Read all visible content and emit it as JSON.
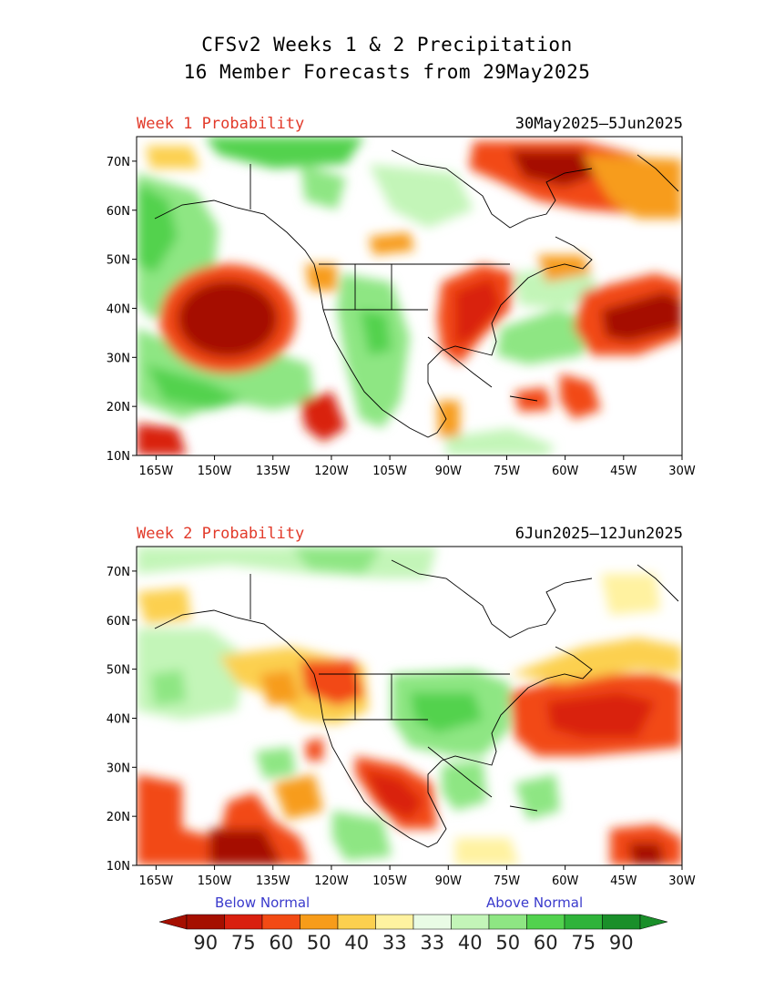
{
  "title": {
    "line1": "CFSv2 Weeks 1 & 2 Precipitation",
    "line2": "16 Member Forecasts from 29May2025"
  },
  "panels": [
    {
      "label": "Week 1 Probability",
      "dates": "30May2025—5Jun2025"
    },
    {
      "label": "Week 2 Probability",
      "dates": "6Jun2025—12Jun2025"
    }
  ],
  "axes": {
    "lon_ticks": [
      "165W",
      "150W",
      "135W",
      "120W",
      "105W",
      "90W",
      "75W",
      "60W",
      "45W",
      "30W"
    ],
    "lat_ticks": [
      "70N",
      "60N",
      "50N",
      "40N",
      "30N",
      "20N",
      "10N"
    ],
    "lon_range": [
      -170,
      -30
    ],
    "lat_range": [
      10,
      75
    ]
  },
  "colorbar": {
    "below_label": "Below Normal",
    "above_label": "Above Normal",
    "values": [
      "90",
      "75",
      "60",
      "50",
      "40",
      "33",
      "33",
      "40",
      "50",
      "60",
      "75",
      "90"
    ],
    "dry_colors": [
      "#a50f00",
      "#d9200f",
      "#f24a14",
      "#f79c1a",
      "#fcd04f",
      "#fff2a0"
    ],
    "wet_colors": [
      "#e9fbe5",
      "#c3f5b8",
      "#8ee683",
      "#52d24e",
      "#2fb33a",
      "#1a8f2a"
    ],
    "end_colors": {
      "dry": "#a50f00",
      "wet": "#1a8f2a"
    }
  }
}
